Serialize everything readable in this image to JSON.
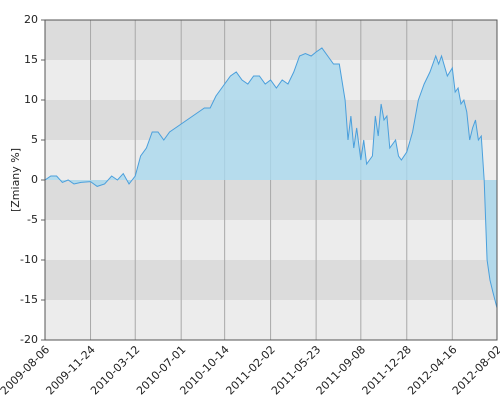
{
  "chart_data": {
    "type": "area",
    "y_label": "[Zmiany %]",
    "xlim": [
      "2009-08-06",
      "2012-08-02"
    ],
    "xticks": [
      "2009-08-06",
      "2009-11-24",
      "2010-03-12",
      "2010-07-01",
      "2010-10-14",
      "2011-02-02",
      "2011-05-23",
      "2011-09-08",
      "2011-12-28",
      "2012-04-16",
      "2012-08-02"
    ],
    "ylim": [
      -20,
      20
    ],
    "yticks": [
      -20,
      -15,
      -10,
      -5,
      0,
      5,
      10,
      15,
      20
    ],
    "band_colors": [
      "#dcdcdc",
      "#ececec"
    ],
    "grid_color": "#a8a8a8",
    "line_color": "#4a9fdc",
    "fill_color": "#a9d8ee",
    "x": [
      "2009-08-06",
      "2009-08-20",
      "2009-09-03",
      "2009-09-17",
      "2009-10-01",
      "2009-10-15",
      "2009-11-01",
      "2009-11-24",
      "2009-12-10",
      "2009-12-28",
      "2010-01-14",
      "2010-01-28",
      "2010-02-11",
      "2010-02-25",
      "2010-03-12",
      "2010-03-25",
      "2010-04-08",
      "2010-04-22",
      "2010-05-06",
      "2010-05-20",
      "2010-06-03",
      "2010-06-17",
      "2010-07-01",
      "2010-07-15",
      "2010-07-29",
      "2010-08-12",
      "2010-08-26",
      "2010-09-09",
      "2010-09-23",
      "2010-10-07",
      "2010-10-14",
      "2010-10-28",
      "2010-11-11",
      "2010-11-25",
      "2010-12-09",
      "2010-12-23",
      "2011-01-06",
      "2011-01-20",
      "2011-02-02",
      "2011-02-16",
      "2011-03-02",
      "2011-03-16",
      "2011-03-30",
      "2011-04-13",
      "2011-04-27",
      "2011-05-11",
      "2011-05-23",
      "2011-06-06",
      "2011-06-20",
      "2011-07-04",
      "2011-07-18",
      "2011-08-01",
      "2011-08-08",
      "2011-08-15",
      "2011-08-22",
      "2011-08-29",
      "2011-09-08",
      "2011-09-15",
      "2011-09-22",
      "2011-10-06",
      "2011-10-13",
      "2011-10-20",
      "2011-10-27",
      "2011-11-03",
      "2011-11-10",
      "2011-11-17",
      "2011-11-24",
      "2011-12-01",
      "2011-12-08",
      "2011-12-15",
      "2011-12-28",
      "2012-01-11",
      "2012-01-25",
      "2012-02-08",
      "2012-02-22",
      "2012-03-07",
      "2012-03-14",
      "2012-03-21",
      "2012-04-04",
      "2012-04-16",
      "2012-04-23",
      "2012-04-30",
      "2012-05-07",
      "2012-05-14",
      "2012-05-21",
      "2012-05-28",
      "2012-06-04",
      "2012-06-11",
      "2012-06-18",
      "2012-06-25",
      "2012-07-02",
      "2012-07-09",
      "2012-07-16",
      "2012-07-23",
      "2012-08-02"
    ],
    "values": [
      0,
      0.5,
      0.5,
      -0.3,
      0,
      -0.5,
      -0.3,
      -0.2,
      -0.8,
      -0.5,
      0.5,
      0,
      0.8,
      -0.5,
      0.5,
      3,
      4,
      6,
      6,
      5,
      6,
      6.5,
      7,
      7.5,
      8,
      8.5,
      9,
      9,
      10.5,
      11.5,
      12,
      13,
      13.5,
      12.5,
      12,
      13,
      13,
      12,
      12.5,
      11.5,
      12.5,
      12,
      13.5,
      15.5,
      15.8,
      15.5,
      16,
      16.5,
      15.5,
      14.5,
      14.5,
      10,
      5,
      8,
      4,
      6.5,
      2.5,
      5,
      2,
      3,
      8,
      5.5,
      9.5,
      7.5,
      8,
      4,
      4.5,
      5,
      3,
      2.5,
      3.5,
      6,
      10,
      12,
      13.5,
      15.5,
      14.5,
      15.5,
      13,
      14,
      11,
      11.5,
      9.5,
      10,
      8.5,
      5,
      6.5,
      7.5,
      5,
      5.5,
      0,
      -10,
      -12.5,
      -14,
      -16
    ]
  }
}
